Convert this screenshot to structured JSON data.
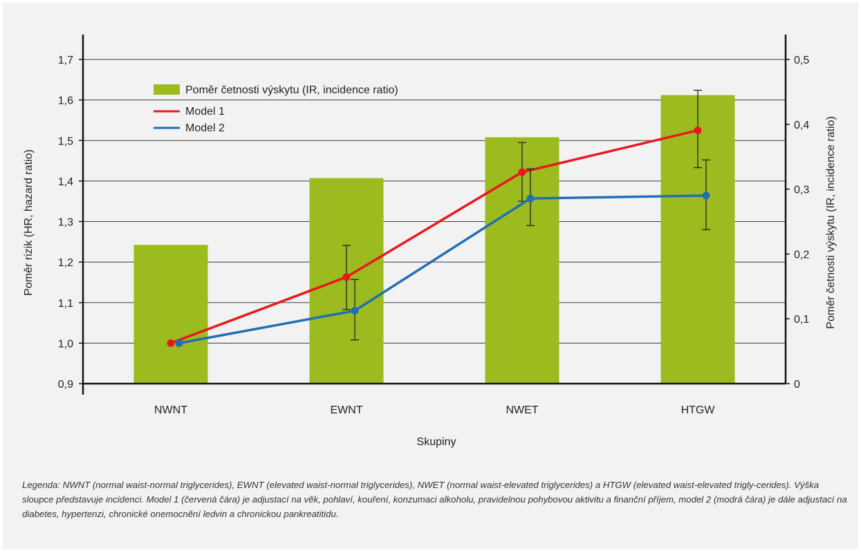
{
  "chart_data": {
    "type": "bar",
    "categories": [
      "NWNT",
      "EWNT",
      "NWET",
      "HTGW"
    ],
    "xlabel": "Skupiny",
    "ylabel": "Poměr rizik (HR, hazard ratio)",
    "y2label": "Poměr četnosti výskytu (IR, incidence ratio)",
    "ylim": [
      0.9,
      1.7
    ],
    "y2lim": [
      0,
      0.5
    ],
    "yticks": [
      "0,9",
      "1,0",
      "1,1",
      "1,2",
      "1,3",
      "1,4",
      "1,5",
      "1,6",
      "1,7"
    ],
    "y2ticks": [
      "0",
      "0,1",
      "0,2",
      "0,3",
      "0,4",
      "0,5"
    ],
    "grid": true,
    "legend_position": "top-left",
    "series": [
      {
        "name": "Poměr četnosti výskytu (IR, incidence ratio)",
        "kind": "bar",
        "axis": "right",
        "color": "#9bbb1e",
        "values": [
          0.214,
          0.317,
          0.38,
          0.445
        ]
      },
      {
        "name": "Model 1",
        "kind": "line",
        "axis": "left",
        "color": "#e8191e",
        "values": [
          1.0,
          1.163,
          1.422,
          1.525
        ],
        "err_low": [
          1.0,
          1.083,
          1.35,
          1.433
        ],
        "err_high": [
          1.0,
          1.241,
          1.495,
          1.624
        ]
      },
      {
        "name": "Model 2",
        "kind": "line",
        "axis": "left",
        "color": "#1f6fb4",
        "values": [
          1.0,
          1.08,
          1.357,
          1.364
        ],
        "err_low": [
          1.0,
          1.008,
          1.29,
          1.28
        ],
        "err_high": [
          1.0,
          1.157,
          1.43,
          1.452
        ]
      }
    ]
  },
  "legend": {
    "bar": "Poměr četnosti výskytu (IR, incidence ratio)",
    "m1": "Model 1",
    "m2": "Model 2"
  },
  "caption": "Legenda: NWNT (normal waist-normal triglycerides), EWNT (elevated waist-normal triglycerides), NWET (normal waist-elevated triglycerides) a HTGW (elevated waist-elevated trigly-cerides). Výška sloupce představuje incidenci. Model 1 (červená čára) je adjustací na věk, pohlaví, kouření, konzumaci alkoholu, pravidelnou pohybovou aktivitu a finanční příjem, model 2 (modrá čára) je dále adjustací na diabetes, hypertenzi, chronické onemocnění ledvin a chronickou pankreatitidu."
}
